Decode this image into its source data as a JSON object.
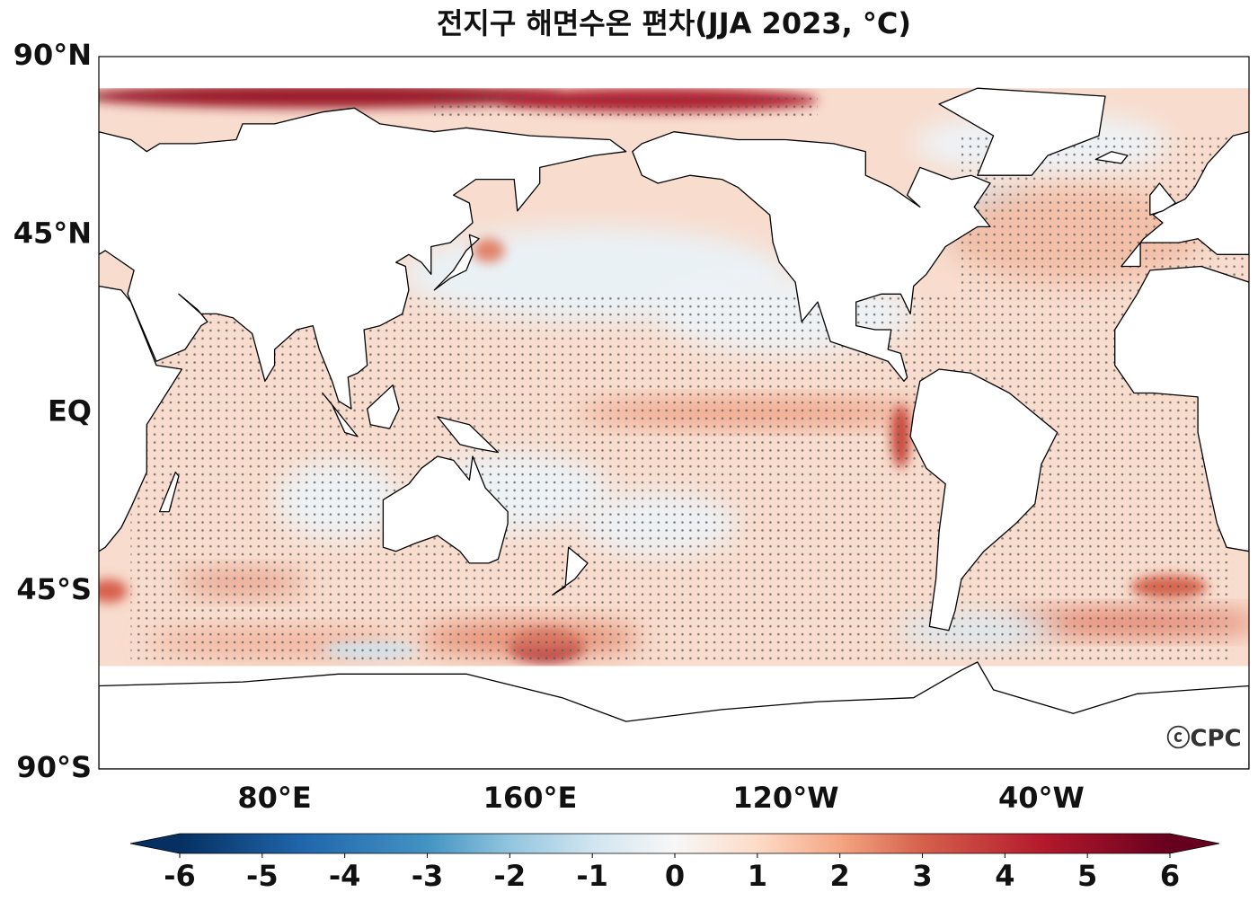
{
  "title": "전지구 해면수온 편차(JJA 2023, °C)",
  "map": {
    "lat_labels": [
      "90°N",
      "45°N",
      "EQ",
      "45°S",
      "90°S"
    ],
    "lon_labels": [
      "80°E",
      "160°E",
      "120°W",
      "40°W"
    ],
    "credit": "ⓒCPC"
  },
  "colorbar": {
    "ticks": [
      -6,
      -5,
      -4,
      -3,
      -2,
      -1,
      0,
      1,
      2,
      3,
      4,
      5,
      6
    ]
  }
}
